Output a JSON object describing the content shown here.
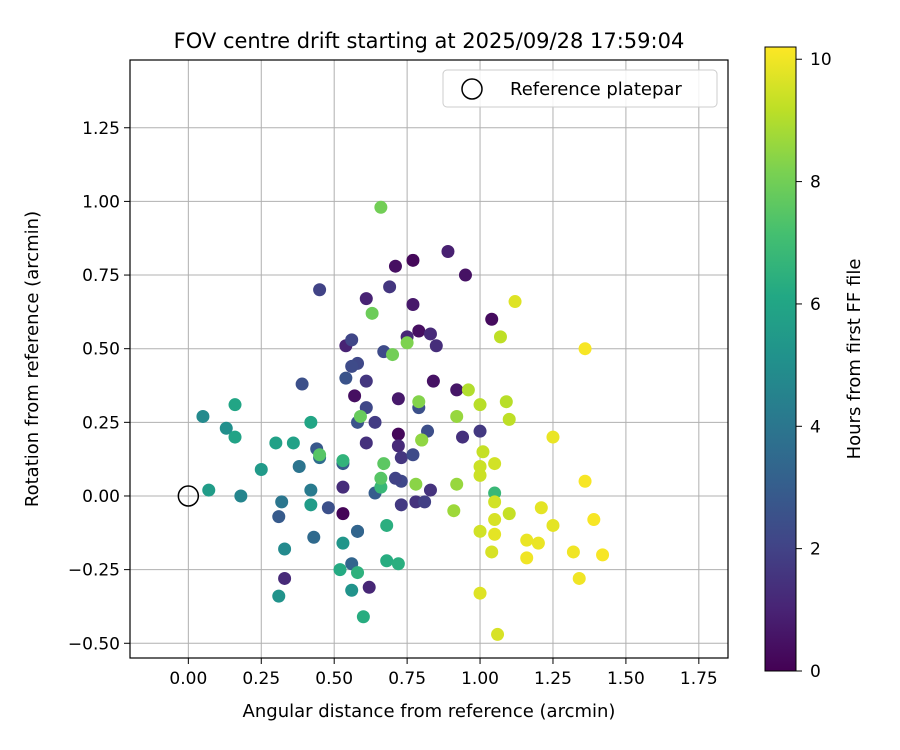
{
  "chart_data": {
    "type": "scatter",
    "title": "FOV centre drift starting at 2025/09/28 17:59:04",
    "xlabel": "Angular distance from reference (arcmin)",
    "ylabel": "Rotation from reference (arcmin)",
    "xlim": [
      -0.2,
      1.85
    ],
    "ylim": [
      -0.55,
      1.48
    ],
    "xticks": [
      0.0,
      0.25,
      0.5,
      0.75,
      1.0,
      1.25,
      1.5,
      1.75
    ],
    "yticks": [
      -0.5,
      -0.25,
      0.0,
      0.25,
      0.5,
      0.75,
      1.0,
      1.25
    ],
    "grid": true,
    "legend": {
      "position": "top-right",
      "entries": [
        "Reference platepar"
      ]
    },
    "reference_point": {
      "x": 0.0,
      "y": 0.0
    },
    "colorbar": {
      "label": "Hours from first FF file",
      "min": 0,
      "max": 10.2,
      "ticks": [
        0,
        2,
        4,
        6,
        8,
        10
      ],
      "colormap": "viridis"
    },
    "points": [
      {
        "x": 0.53,
        "y": -0.06,
        "h": 0.1
      },
      {
        "x": 0.72,
        "y": 0.21,
        "h": 0.2
      },
      {
        "x": 0.77,
        "y": 0.8,
        "h": 0.2
      },
      {
        "x": 0.57,
        "y": 0.34,
        "h": 0.4
      },
      {
        "x": 1.04,
        "y": 0.6,
        "h": 0.3
      },
      {
        "x": 0.95,
        "y": 0.75,
        "h": 0.5
      },
      {
        "x": 0.79,
        "y": 0.56,
        "h": 0.4
      },
      {
        "x": 0.71,
        "y": 0.78,
        "h": 0.4
      },
      {
        "x": 0.84,
        "y": 0.39,
        "h": 0.5
      },
      {
        "x": 0.92,
        "y": 0.36,
        "h": 0.6
      },
      {
        "x": 0.89,
        "y": 0.83,
        "h": 0.9
      },
      {
        "x": 0.72,
        "y": 0.33,
        "h": 0.7
      },
      {
        "x": 0.54,
        "y": 0.51,
        "h": 1.0
      },
      {
        "x": 0.61,
        "y": 0.67,
        "h": 1.0
      },
      {
        "x": 0.77,
        "y": 0.65,
        "h": 0.7
      },
      {
        "x": 0.75,
        "y": 0.54,
        "h": 1.1
      },
      {
        "x": 0.83,
        "y": 0.55,
        "h": 1.2
      },
      {
        "x": 0.85,
        "y": 0.51,
        "h": 1.3
      },
      {
        "x": 0.72,
        "y": 0.17,
        "h": 1.2
      },
      {
        "x": 0.62,
        "y": -0.31,
        "h": 1.1
      },
      {
        "x": 0.33,
        "y": -0.28,
        "h": 1.2
      },
      {
        "x": 0.53,
        "y": 0.03,
        "h": 1.3
      },
      {
        "x": 0.61,
        "y": 0.18,
        "h": 1.4
      },
      {
        "x": 0.69,
        "y": 0.71,
        "h": 1.6
      },
      {
        "x": 0.61,
        "y": 0.39,
        "h": 1.6
      },
      {
        "x": 0.94,
        "y": 0.2,
        "h": 1.4
      },
      {
        "x": 0.83,
        "y": 0.02,
        "h": 1.5
      },
      {
        "x": 0.73,
        "y": 0.13,
        "h": 1.6
      },
      {
        "x": 0.78,
        "y": -0.02,
        "h": 1.5
      },
      {
        "x": 0.73,
        "y": -0.03,
        "h": 1.7
      },
      {
        "x": 0.45,
        "y": 0.7,
        "h": 2.0
      },
      {
        "x": 0.56,
        "y": 0.53,
        "h": 2.1
      },
      {
        "x": 1.0,
        "y": 0.22,
        "h": 1.7
      },
      {
        "x": 0.81,
        "y": -0.02,
        "h": 1.9
      },
      {
        "x": 0.64,
        "y": 0.25,
        "h": 1.8
      },
      {
        "x": 0.58,
        "y": 0.45,
        "h": 2.2
      },
      {
        "x": 0.56,
        "y": 0.44,
        "h": 2.3
      },
      {
        "x": 0.61,
        "y": 0.3,
        "h": 2.2
      },
      {
        "x": 0.67,
        "y": 0.49,
        "h": 2.3
      },
      {
        "x": 0.79,
        "y": 0.3,
        "h": 2.5
      },
      {
        "x": 0.82,
        "y": 0.22,
        "h": 2.4
      },
      {
        "x": 0.73,
        "y": 0.05,
        "h": 2.2
      },
      {
        "x": 0.71,
        "y": 0.06,
        "h": 2.0
      },
      {
        "x": 0.77,
        "y": 0.14,
        "h": 2.3
      },
      {
        "x": 0.39,
        "y": 0.38,
        "h": 2.5
      },
      {
        "x": 0.54,
        "y": 0.4,
        "h": 2.6
      },
      {
        "x": 0.58,
        "y": 0.25,
        "h": 2.6
      },
      {
        "x": 0.48,
        "y": -0.04,
        "h": 2.5
      },
      {
        "x": 0.53,
        "y": 0.11,
        "h": 2.9
      },
      {
        "x": 0.44,
        "y": 0.16,
        "h": 2.8
      },
      {
        "x": 0.31,
        "y": -0.07,
        "h": 2.9
      },
      {
        "x": 0.64,
        "y": 0.01,
        "h": 3.0
      },
      {
        "x": 0.58,
        "y": -0.12,
        "h": 2.8
      },
      {
        "x": 0.56,
        "y": -0.23,
        "h": 3.3
      },
      {
        "x": 0.58,
        "y": -0.12,
        "h": 3.3
      },
      {
        "x": 0.43,
        "y": -0.14,
        "h": 3.5
      },
      {
        "x": 0.45,
        "y": 0.13,
        "h": 3.6
      },
      {
        "x": 0.38,
        "y": 0.1,
        "h": 3.9
      },
      {
        "x": 0.32,
        "y": -0.02,
        "h": 4.0
      },
      {
        "x": 0.42,
        "y": 0.02,
        "h": 4.2
      },
      {
        "x": 0.18,
        "y": 0.0,
        "h": 4.6
      },
      {
        "x": 0.33,
        "y": -0.18,
        "h": 4.8
      },
      {
        "x": 0.05,
        "y": 0.27,
        "h": 4.8
      },
      {
        "x": 0.13,
        "y": 0.23,
        "h": 5.0
      },
      {
        "x": 0.31,
        "y": -0.34,
        "h": 5.2
      },
      {
        "x": 0.56,
        "y": -0.32,
        "h": 5.2
      },
      {
        "x": 0.53,
        "y": -0.16,
        "h": 5.3
      },
      {
        "x": 0.25,
        "y": 0.09,
        "h": 5.5
      },
      {
        "x": 0.07,
        "y": 0.02,
        "h": 5.6
      },
      {
        "x": 0.42,
        "y": -0.03,
        "h": 5.6
      },
      {
        "x": 0.36,
        "y": 0.18,
        "h": 5.8
      },
      {
        "x": 0.3,
        "y": 0.18,
        "h": 5.8
      },
      {
        "x": 0.16,
        "y": 0.2,
        "h": 5.9
      },
      {
        "x": 0.16,
        "y": 0.31,
        "h": 6.0
      },
      {
        "x": 0.42,
        "y": 0.25,
        "h": 6.0
      },
      {
        "x": 0.52,
        "y": -0.25,
        "h": 6.2
      },
      {
        "x": 0.6,
        "y": -0.41,
        "h": 6.3
      },
      {
        "x": 0.68,
        "y": -0.22,
        "h": 6.3
      },
      {
        "x": 0.72,
        "y": -0.23,
        "h": 6.4
      },
      {
        "x": 0.68,
        "y": -0.1,
        "h": 6.4
      },
      {
        "x": 0.58,
        "y": -0.26,
        "h": 6.5
      },
      {
        "x": 0.53,
        "y": 0.12,
        "h": 6.6
      },
      {
        "x": 1.05,
        "y": 0.01,
        "h": 6.8
      },
      {
        "x": 0.66,
        "y": 0.03,
        "h": 6.8
      },
      {
        "x": 0.45,
        "y": 0.14,
        "h": 7.5
      },
      {
        "x": 0.67,
        "y": 0.11,
        "h": 7.6
      },
      {
        "x": 0.66,
        "y": 0.06,
        "h": 7.5
      },
      {
        "x": 0.59,
        "y": 0.27,
        "h": 7.8
      },
      {
        "x": 0.63,
        "y": 0.62,
        "h": 7.9
      },
      {
        "x": 0.66,
        "y": 0.98,
        "h": 8.0
      },
      {
        "x": 0.7,
        "y": 0.48,
        "h": 8.0
      },
      {
        "x": 0.75,
        "y": 0.52,
        "h": 8.2
      },
      {
        "x": 0.79,
        "y": 0.32,
        "h": 8.3
      },
      {
        "x": 0.8,
        "y": 0.19,
        "h": 8.4
      },
      {
        "x": 0.78,
        "y": 0.04,
        "h": 8.4
      },
      {
        "x": 0.8,
        "y": 0.19,
        "h": 8.5
      },
      {
        "x": 0.92,
        "y": 0.27,
        "h": 8.6
      },
      {
        "x": 0.92,
        "y": 0.04,
        "h": 8.6
      },
      {
        "x": 0.91,
        "y": -0.05,
        "h": 8.7
      },
      {
        "x": 0.96,
        "y": 0.36,
        "h": 9.0
      },
      {
        "x": 1.0,
        "y": 0.31,
        "h": 9.1
      },
      {
        "x": 1.07,
        "y": 0.54,
        "h": 9.2
      },
      {
        "x": 1.09,
        "y": 0.32,
        "h": 9.1
      },
      {
        "x": 1.1,
        "y": 0.26,
        "h": 9.2
      },
      {
        "x": 1.01,
        "y": 0.15,
        "h": 9.3
      },
      {
        "x": 1.0,
        "y": 0.1,
        "h": 9.4
      },
      {
        "x": 1.0,
        "y": 0.07,
        "h": 9.4
      },
      {
        "x": 1.05,
        "y": 0.11,
        "h": 9.5
      },
      {
        "x": 1.05,
        "y": -0.02,
        "h": 9.5
      },
      {
        "x": 1.05,
        "y": -0.08,
        "h": 9.6
      },
      {
        "x": 1.1,
        "y": -0.06,
        "h": 9.3
      },
      {
        "x": 1.0,
        "y": -0.12,
        "h": 9.5
      },
      {
        "x": 1.04,
        "y": -0.19,
        "h": 9.6
      },
      {
        "x": 1.0,
        "y": -0.33,
        "h": 9.7
      },
      {
        "x": 1.06,
        "y": -0.47,
        "h": 9.6
      },
      {
        "x": 1.05,
        "y": -0.13,
        "h": 9.8
      },
      {
        "x": 1.12,
        "y": 0.66,
        "h": 9.7
      },
      {
        "x": 1.21,
        "y": -0.04,
        "h": 9.8
      },
      {
        "x": 1.25,
        "y": 0.2,
        "h": 9.9
      },
      {
        "x": 1.25,
        "y": -0.1,
        "h": 9.8
      },
      {
        "x": 1.16,
        "y": -0.15,
        "h": 9.9
      },
      {
        "x": 1.2,
        "y": -0.16,
        "h": 9.9
      },
      {
        "x": 1.16,
        "y": -0.21,
        "h": 10.0
      },
      {
        "x": 1.32,
        "y": -0.19,
        "h": 10.0
      },
      {
        "x": 1.34,
        "y": -0.28,
        "h": 10.0
      },
      {
        "x": 1.36,
        "y": 0.05,
        "h": 10.1
      },
      {
        "x": 1.36,
        "y": 0.5,
        "h": 10.1
      },
      {
        "x": 1.39,
        "y": -0.08,
        "h": 10.1
      },
      {
        "x": 1.42,
        "y": -0.2,
        "h": 10.1
      }
    ]
  }
}
